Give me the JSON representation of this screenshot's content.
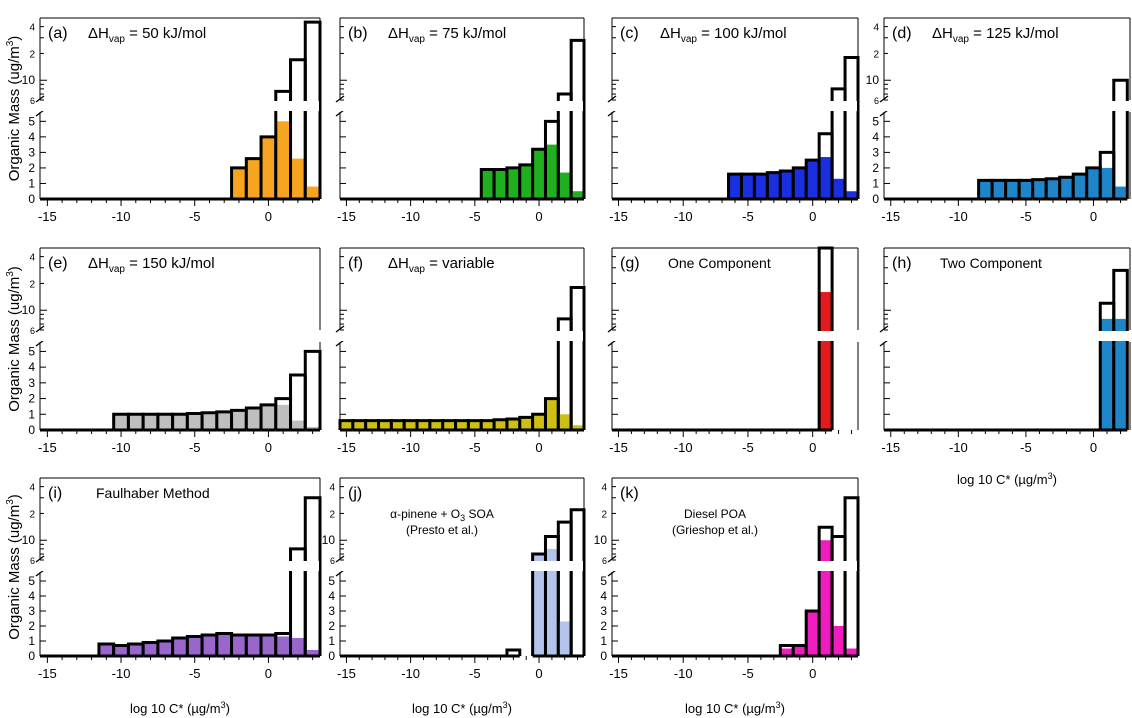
{
  "figure": {
    "ylabel": "Organic Mass (ug/m",
    "ylabel_sup": "3",
    "ylabel_close": ")",
    "xlabel": "log 10 C* (µg/m",
    "xlabel_sup": "3",
    "xlabel_close": ")"
  },
  "chart_data": [
    {
      "id": "a",
      "type": "bar",
      "tag": "(a)",
      "label_parts": [
        "ΔH",
        "vap",
        " = 50 kJ/mol"
      ],
      "x": [
        -2,
        -1,
        0,
        1,
        2,
        3
      ],
      "series": [
        {
          "role": "total",
          "values": [
            2.0,
            2.6,
            4.0,
            7.5,
            17.0,
            45.0
          ]
        },
        {
          "role": "particle",
          "color": "#F7A520",
          "values": [
            2.0,
            2.6,
            4.0,
            5.0,
            2.6,
            0.8
          ]
        }
      ],
      "xlim": [
        -15.5,
        3.5
      ],
      "xticks": [
        -15,
        -10,
        -5,
        0
      ],
      "ylim_lower": [
        0,
        5.6
      ],
      "yticks_lower": [
        0,
        1,
        2,
        3,
        4,
        5
      ],
      "ylim_upper": [
        6,
        50
      ],
      "yticks_upper_labels": [
        "6",
        "10",
        "2",
        "4"
      ],
      "scale_upper": "log",
      "grid": false
    },
    {
      "id": "b",
      "type": "bar",
      "tag": "(b)",
      "label_parts": [
        "ΔH",
        "vap",
        " = 75 kJ/mol"
      ],
      "x": [
        -4,
        -3,
        -2,
        -1,
        0,
        1,
        2,
        3
      ],
      "series": [
        {
          "role": "total",
          "values": [
            1.9,
            1.9,
            2.0,
            2.2,
            3.2,
            5.0,
            7.0,
            28.0
          ]
        },
        {
          "role": "particle",
          "color": "#1FAF1F",
          "values": [
            1.9,
            1.9,
            2.0,
            2.2,
            3.2,
            3.5,
            1.7,
            0.5
          ]
        }
      ],
      "xlim": [
        -15.5,
        3.5
      ],
      "xticks": [
        -15,
        -10,
        -5,
        0
      ],
      "ylim_lower": [
        0,
        5.6
      ],
      "ylim_upper": [
        6,
        50
      ],
      "scale_upper": "log",
      "grid": false
    },
    {
      "id": "c",
      "type": "bar",
      "tag": "(c)",
      "label_parts": [
        "ΔH",
        "vap",
        " = 100 kJ/mol"
      ],
      "x": [
        -6,
        -5,
        -4,
        -3,
        -2,
        -1,
        0,
        1,
        2,
        3
      ],
      "series": [
        {
          "role": "total",
          "values": [
            1.6,
            1.6,
            1.6,
            1.7,
            1.8,
            2.0,
            2.5,
            4.2,
            8.0,
            18.0
          ]
        },
        {
          "role": "particle",
          "color": "#1A2FE0",
          "values": [
            1.6,
            1.6,
            1.6,
            1.7,
            1.8,
            2.0,
            2.5,
            2.7,
            1.3,
            0.5
          ]
        }
      ],
      "xlim": [
        -15.5,
        3.5
      ],
      "xticks": [
        -15,
        -10,
        -5,
        0
      ],
      "ylim_lower": [
        0,
        5.6
      ],
      "ylim_upper": [
        6,
        50
      ],
      "scale_upper": "log",
      "grid": false
    },
    {
      "id": "d",
      "type": "bar",
      "tag": "(d)",
      "label_parts": [
        "ΔH",
        "vap",
        " = 125 kJ/mol"
      ],
      "x": [
        -8,
        -7,
        -6,
        -5,
        -4,
        -3,
        -2,
        -1,
        0,
        1,
        2
      ],
      "series": [
        {
          "role": "total",
          "values": [
            1.2,
            1.2,
            1.2,
            1.2,
            1.25,
            1.3,
            1.4,
            1.6,
            2.0,
            3.0,
            10.0
          ]
        },
        {
          "role": "particle",
          "color": "#1E86C8",
          "values": [
            1.2,
            1.2,
            1.2,
            1.2,
            1.25,
            1.3,
            1.4,
            1.6,
            2.0,
            2.0,
            0.8
          ]
        }
      ],
      "xlim": [
        -15.5,
        2.7
      ],
      "xticks": [
        -15,
        -10,
        -5,
        0
      ],
      "ylim_lower": [
        0,
        5.6
      ],
      "ylim_upper": [
        6,
        50
      ],
      "scale_upper": "log",
      "grid": false
    },
    {
      "id": "e",
      "type": "bar",
      "tag": "(e)",
      "label_parts": [
        "ΔH",
        "vap",
        " = 150 kJ/mol"
      ],
      "x": [
        -10,
        -9,
        -8,
        -7,
        -6,
        -5,
        -4,
        -3,
        -2,
        -1,
        0,
        1,
        2,
        3
      ],
      "series": [
        {
          "role": "total",
          "values": [
            1.0,
            1.0,
            1.0,
            1.0,
            1.0,
            1.05,
            1.1,
            1.15,
            1.25,
            1.4,
            1.6,
            2.0,
            3.5,
            5.0
          ]
        },
        {
          "role": "particle",
          "color": "#BFBFBF",
          "values": [
            1.0,
            1.0,
            1.0,
            1.0,
            1.0,
            1.05,
            1.1,
            1.15,
            1.25,
            1.4,
            1.6,
            1.6,
            0.6,
            0.2
          ]
        }
      ],
      "xlim": [
        -15.5,
        3.5
      ],
      "xticks": [
        -15,
        -10,
        -5,
        0
      ],
      "ylim_lower": [
        0,
        5.6
      ],
      "ylim_upper": [
        6,
        50
      ],
      "scale_upper": "log",
      "grid": false
    },
    {
      "id": "f",
      "type": "bar",
      "tag": "(f)",
      "label_parts": [
        "ΔH",
        "vap",
        " = variable"
      ],
      "x": [
        -15,
        -14,
        -13,
        -12,
        -11,
        -10,
        -9,
        -8,
        -7,
        -6,
        -5,
        -4,
        -3,
        -2,
        -1,
        0,
        1,
        2,
        3
      ],
      "series": [
        {
          "role": "total",
          "values": [
            0.6,
            0.6,
            0.6,
            0.6,
            0.6,
            0.6,
            0.6,
            0.6,
            0.6,
            0.6,
            0.6,
            0.6,
            0.65,
            0.7,
            0.8,
            1.0,
            2.0,
            8.0,
            18.0
          ]
        },
        {
          "role": "particle",
          "color": "#CDBF14",
          "values": [
            0.6,
            0.6,
            0.6,
            0.6,
            0.6,
            0.6,
            0.6,
            0.6,
            0.6,
            0.6,
            0.6,
            0.6,
            0.65,
            0.7,
            0.8,
            1.0,
            2.0,
            1.0,
            0.3
          ]
        }
      ],
      "xlim": [
        -15.5,
        3.5
      ],
      "xticks": [
        -15,
        -10,
        -5,
        0
      ],
      "ylim_lower": [
        0,
        5.6
      ],
      "ylim_upper": [
        6,
        50
      ],
      "scale_upper": "log",
      "grid": false
    },
    {
      "id": "g",
      "type": "bar",
      "tag": "(g)",
      "label_parts": [
        "One Component"
      ],
      "x": [
        1
      ],
      "series": [
        {
          "role": "total",
          "values": [
            50.0
          ]
        },
        {
          "role": "particle",
          "color": "#E41A1C",
          "values": [
            16.0
          ]
        }
      ],
      "xlim": [
        -15.5,
        3.5
      ],
      "xticks": [
        -15,
        -10,
        -5,
        0
      ],
      "ylim_lower": [
        0,
        5.6
      ],
      "ylim_upper": [
        6,
        50
      ],
      "scale_upper": "log",
      "grid": false
    },
    {
      "id": "h",
      "type": "bar",
      "tag": "(h)",
      "label_parts": [
        "Two Component"
      ],
      "x": [
        1,
        2
      ],
      "series": [
        {
          "role": "total",
          "values": [
            12.0,
            28.0
          ]
        },
        {
          "role": "particle",
          "color": "#1E86C8",
          "values": [
            8.0,
            8.0
          ]
        }
      ],
      "xlim": [
        -15.5,
        2.7
      ],
      "xticks": [
        -15,
        -10,
        -5,
        0
      ],
      "ylim_lower": [
        0,
        5.6
      ],
      "ylim_upper": [
        6,
        50
      ],
      "scale_upper": "log",
      "grid": false
    },
    {
      "id": "i",
      "type": "bar",
      "tag": "(i)",
      "label_parts": [
        "Faulhaber Method"
      ],
      "x": [
        -11,
        -10,
        -9,
        -8,
        -7,
        -6,
        -5,
        -4,
        -3,
        -2,
        -1,
        0,
        1,
        2,
        3
      ],
      "series": [
        {
          "role": "total",
          "values": [
            0.8,
            0.7,
            0.8,
            0.9,
            1.0,
            1.2,
            1.3,
            1.4,
            1.5,
            1.4,
            1.4,
            1.4,
            1.5,
            8.0,
            30.0
          ]
        },
        {
          "role": "particle",
          "color": "#9966CC",
          "values": [
            0.8,
            0.7,
            0.8,
            0.9,
            1.0,
            1.2,
            1.3,
            1.4,
            1.5,
            1.4,
            1.4,
            1.4,
            1.3,
            1.2,
            0.4
          ]
        }
      ],
      "xlim": [
        -15.5,
        3.5
      ],
      "xticks": [
        -15,
        -10,
        -5,
        0
      ],
      "ylim_lower": [
        0,
        5.6
      ],
      "ylim_upper": [
        6,
        50
      ],
      "scale_upper": "log",
      "grid": false
    },
    {
      "id": "j",
      "type": "bar",
      "tag": "(j)",
      "label_lines": [
        "α-pinene + O3 SOA",
        "(Presto et al.)"
      ],
      "x": [
        -2,
        0,
        1,
        2,
        3
      ],
      "series": [
        {
          "role": "total",
          "values": [
            0.4,
            7.0,
            11.0,
            16.0,
            22.0
          ]
        },
        {
          "role": "particle",
          "color": "#B3C3EB",
          "values": [
            0.0,
            7.0,
            8.0,
            2.3,
            0.0
          ]
        }
      ],
      "xlim": [
        -15.5,
        3.5
      ],
      "xticks": [
        -15,
        -10,
        -5,
        0
      ],
      "ylim_lower": [
        0,
        5.6
      ],
      "ylim_upper": [
        6,
        50
      ],
      "scale_upper": "log",
      "grid": false
    },
    {
      "id": "k",
      "type": "bar",
      "tag": "(k)",
      "label_lines": [
        "Diesel POA",
        "(Grieshop et al.)"
      ],
      "x": [
        -2,
        -1,
        0,
        1,
        2,
        3
      ],
      "series": [
        {
          "role": "total",
          "values": [
            0.7,
            0.7,
            3.0,
            14.0,
            11.0,
            30.0
          ]
        },
        {
          "role": "particle",
          "color": "#F01CC0",
          "values": [
            0.5,
            0.6,
            3.0,
            10.0,
            2.0,
            0.5
          ]
        }
      ],
      "xlim": [
        -15.5,
        3.5
      ],
      "xticks": [
        -15,
        -10,
        -5,
        0
      ],
      "ylim_lower": [
        0,
        5.6
      ],
      "ylim_upper": [
        6,
        50
      ],
      "scale_upper": "log",
      "grid": false
    }
  ]
}
